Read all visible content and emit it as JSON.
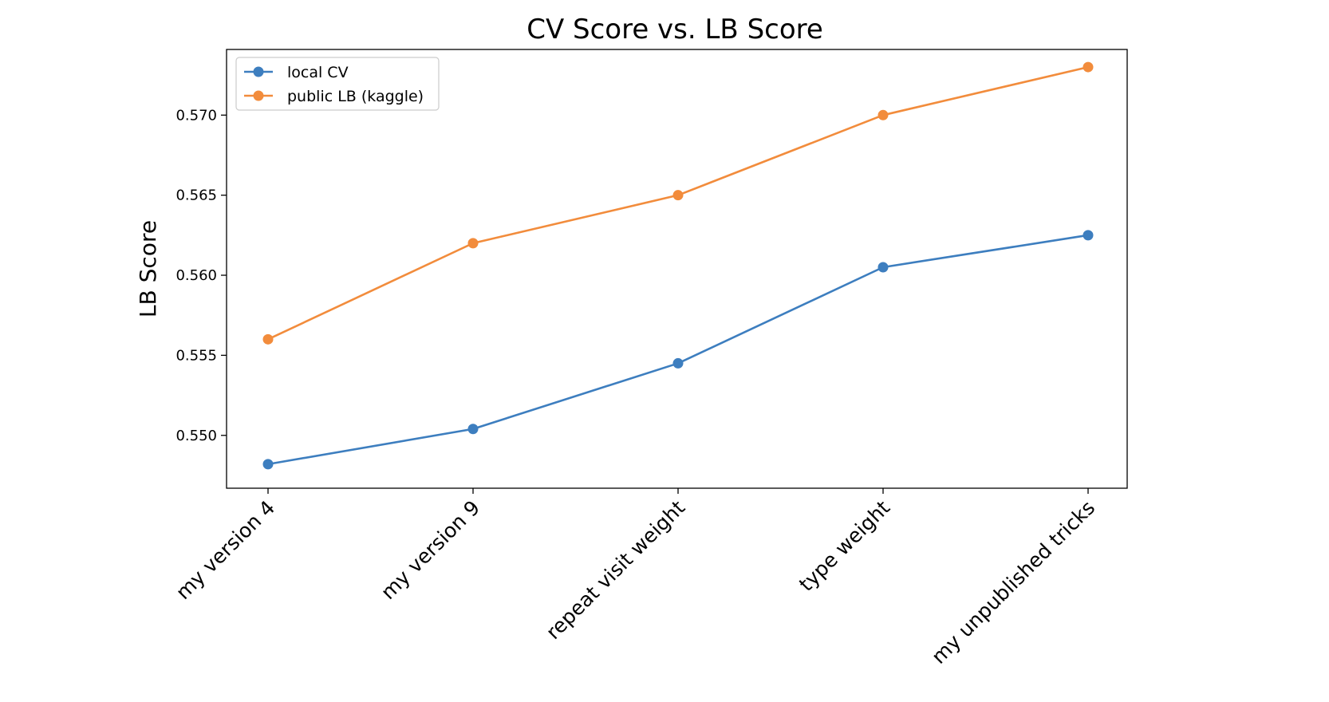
{
  "chart_data": {
    "type": "line",
    "title": "CV Score vs. LB Score",
    "xlabel": "",
    "ylabel": "LB Score",
    "categories": [
      "my version 4",
      "my version 9",
      "repeat visit weight",
      "type weight",
      "my unpublished tricks"
    ],
    "series": [
      {
        "name": "local CV",
        "color": "#3d7ebf",
        "values": [
          0.5482,
          0.5504,
          0.5545,
          0.5605,
          0.5625
        ]
      },
      {
        "name": "public LB (kaggle)",
        "color": "#f28c3c",
        "values": [
          0.556,
          0.562,
          0.565,
          0.57,
          0.573
        ]
      }
    ],
    "ylim": [
      0.5467,
      0.5741
    ],
    "yticks": [
      "0.550",
      "0.555",
      "0.560",
      "0.565",
      "0.570"
    ],
    "grid": false,
    "legend": "top-left"
  }
}
